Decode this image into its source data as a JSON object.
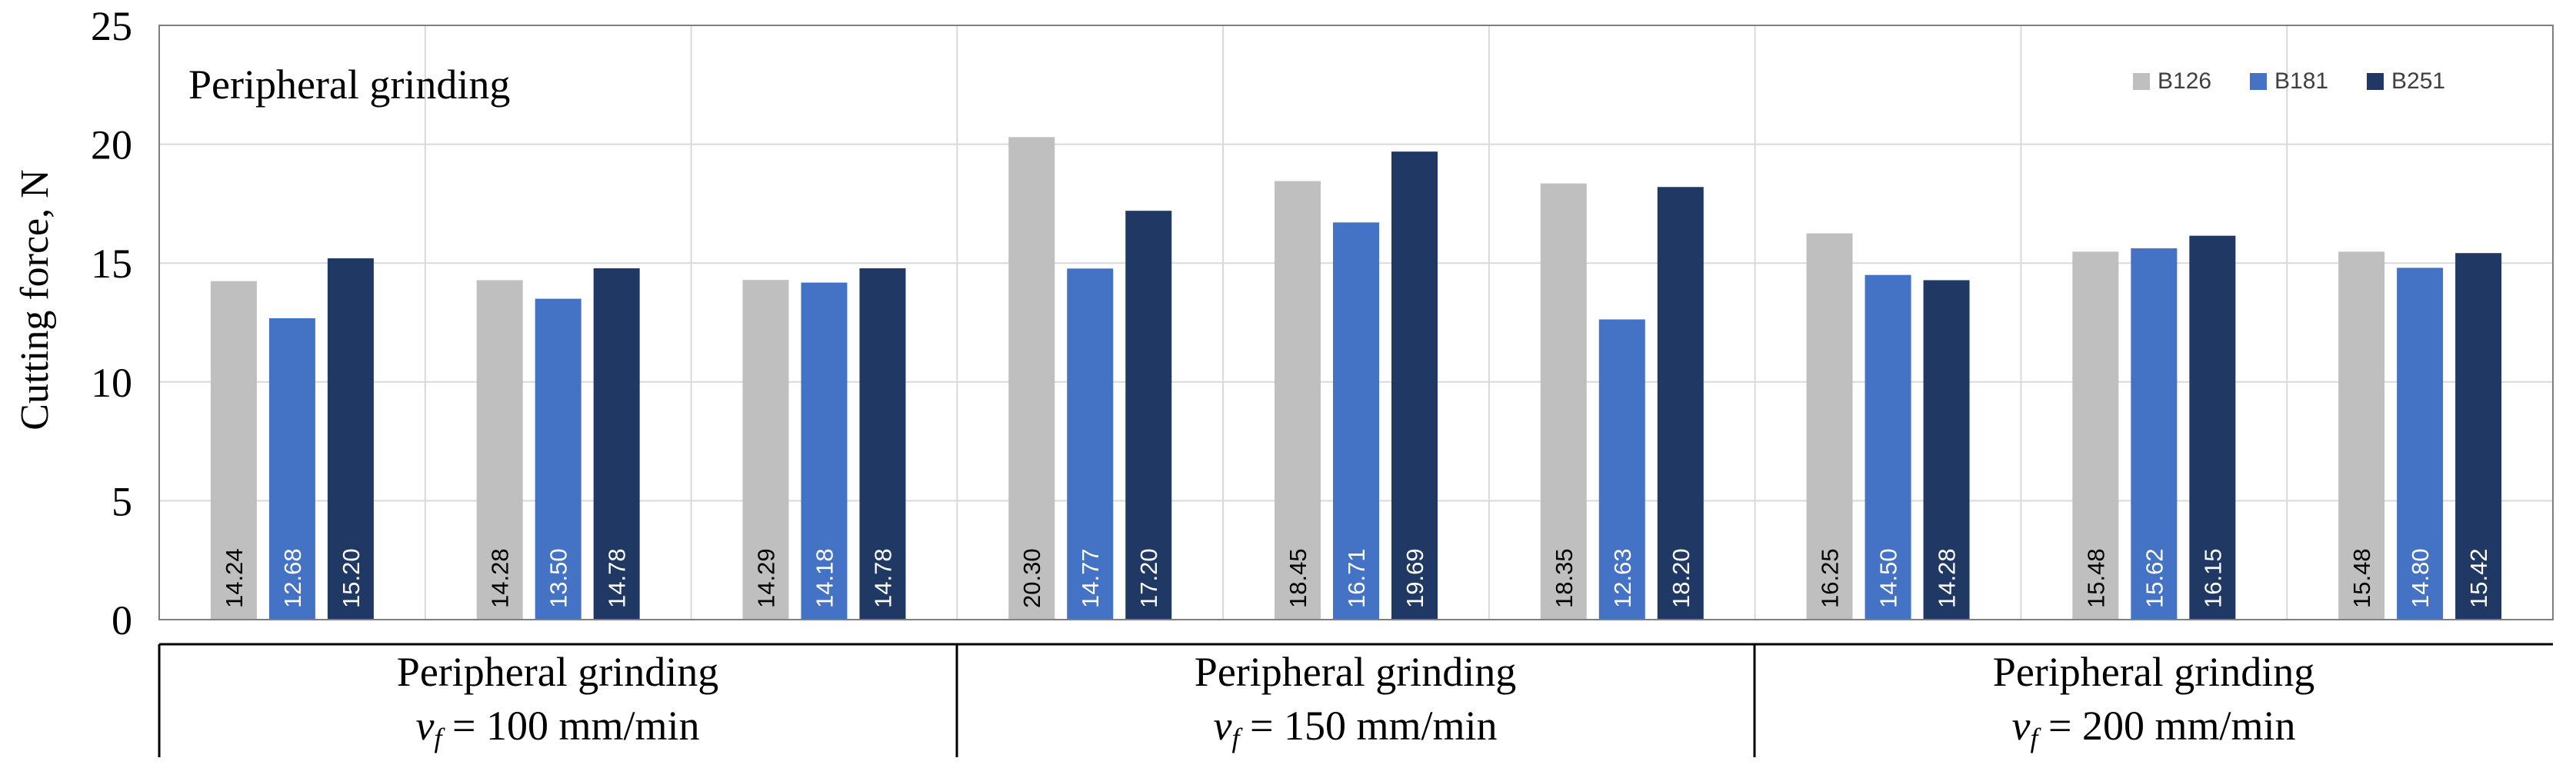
{
  "chart_data": {
    "type": "bar",
    "title": "Peripheral grinding",
    "ylabel": "Cutting force, N",
    "xlabel": "",
    "ylim": [
      0,
      25
    ],
    "yticks": [
      0,
      5,
      10,
      15,
      20,
      25
    ],
    "grid": true,
    "legend_position": "top-right",
    "colors": {
      "B126": "#bfbfbf",
      "B181": "#4472c4",
      "B251": "#203864"
    },
    "series_names": [
      "B126",
      "B181",
      "B251"
    ],
    "clusters": [
      {
        "values": [
          14.24,
          12.68,
          15.2
        ],
        "labels": [
          "14.24",
          "12.68",
          "15.20"
        ]
      },
      {
        "values": [
          14.28,
          13.5,
          14.78
        ],
        "labels": [
          "14.28",
          "13.50",
          "14.78"
        ]
      },
      {
        "values": [
          14.29,
          14.18,
          14.78
        ],
        "labels": [
          "14.29",
          "14.18",
          "14.78"
        ]
      },
      {
        "values": [
          20.3,
          14.77,
          17.2
        ],
        "labels": [
          "20.30",
          "14.77",
          "17.20"
        ]
      },
      {
        "values": [
          18.45,
          16.71,
          19.69
        ],
        "labels": [
          "18.45",
          "16.71",
          "19.69"
        ]
      },
      {
        "values": [
          18.35,
          12.63,
          18.2
        ],
        "labels": [
          "18.35",
          "12.63",
          "18.20"
        ]
      },
      {
        "values": [
          16.25,
          14.5,
          14.28
        ],
        "labels": [
          "16.25",
          "14.50",
          "14.28"
        ]
      },
      {
        "values": [
          15.48,
          15.62,
          16.15
        ],
        "labels": [
          "15.48",
          "15.62",
          "16.15"
        ]
      },
      {
        "values": [
          15.48,
          14.8,
          15.42
        ],
        "labels": [
          "15.48",
          "14.80",
          "15.42"
        ]
      }
    ],
    "groups": [
      {
        "line1": "Peripheral grinding",
        "v_symbol": "v",
        "v_subscript": "f",
        "v_text": " = 100 mm/min",
        "clusters": 3
      },
      {
        "line1": "Peripheral grinding",
        "v_symbol": "v",
        "v_subscript": "f",
        "v_text": " = 150 mm/min",
        "clusters": 3
      },
      {
        "line1": "Peripheral grinding",
        "v_symbol": "v",
        "v_subscript": "f",
        "v_text": " = 200 mm/min",
        "clusters": 3
      }
    ]
  }
}
